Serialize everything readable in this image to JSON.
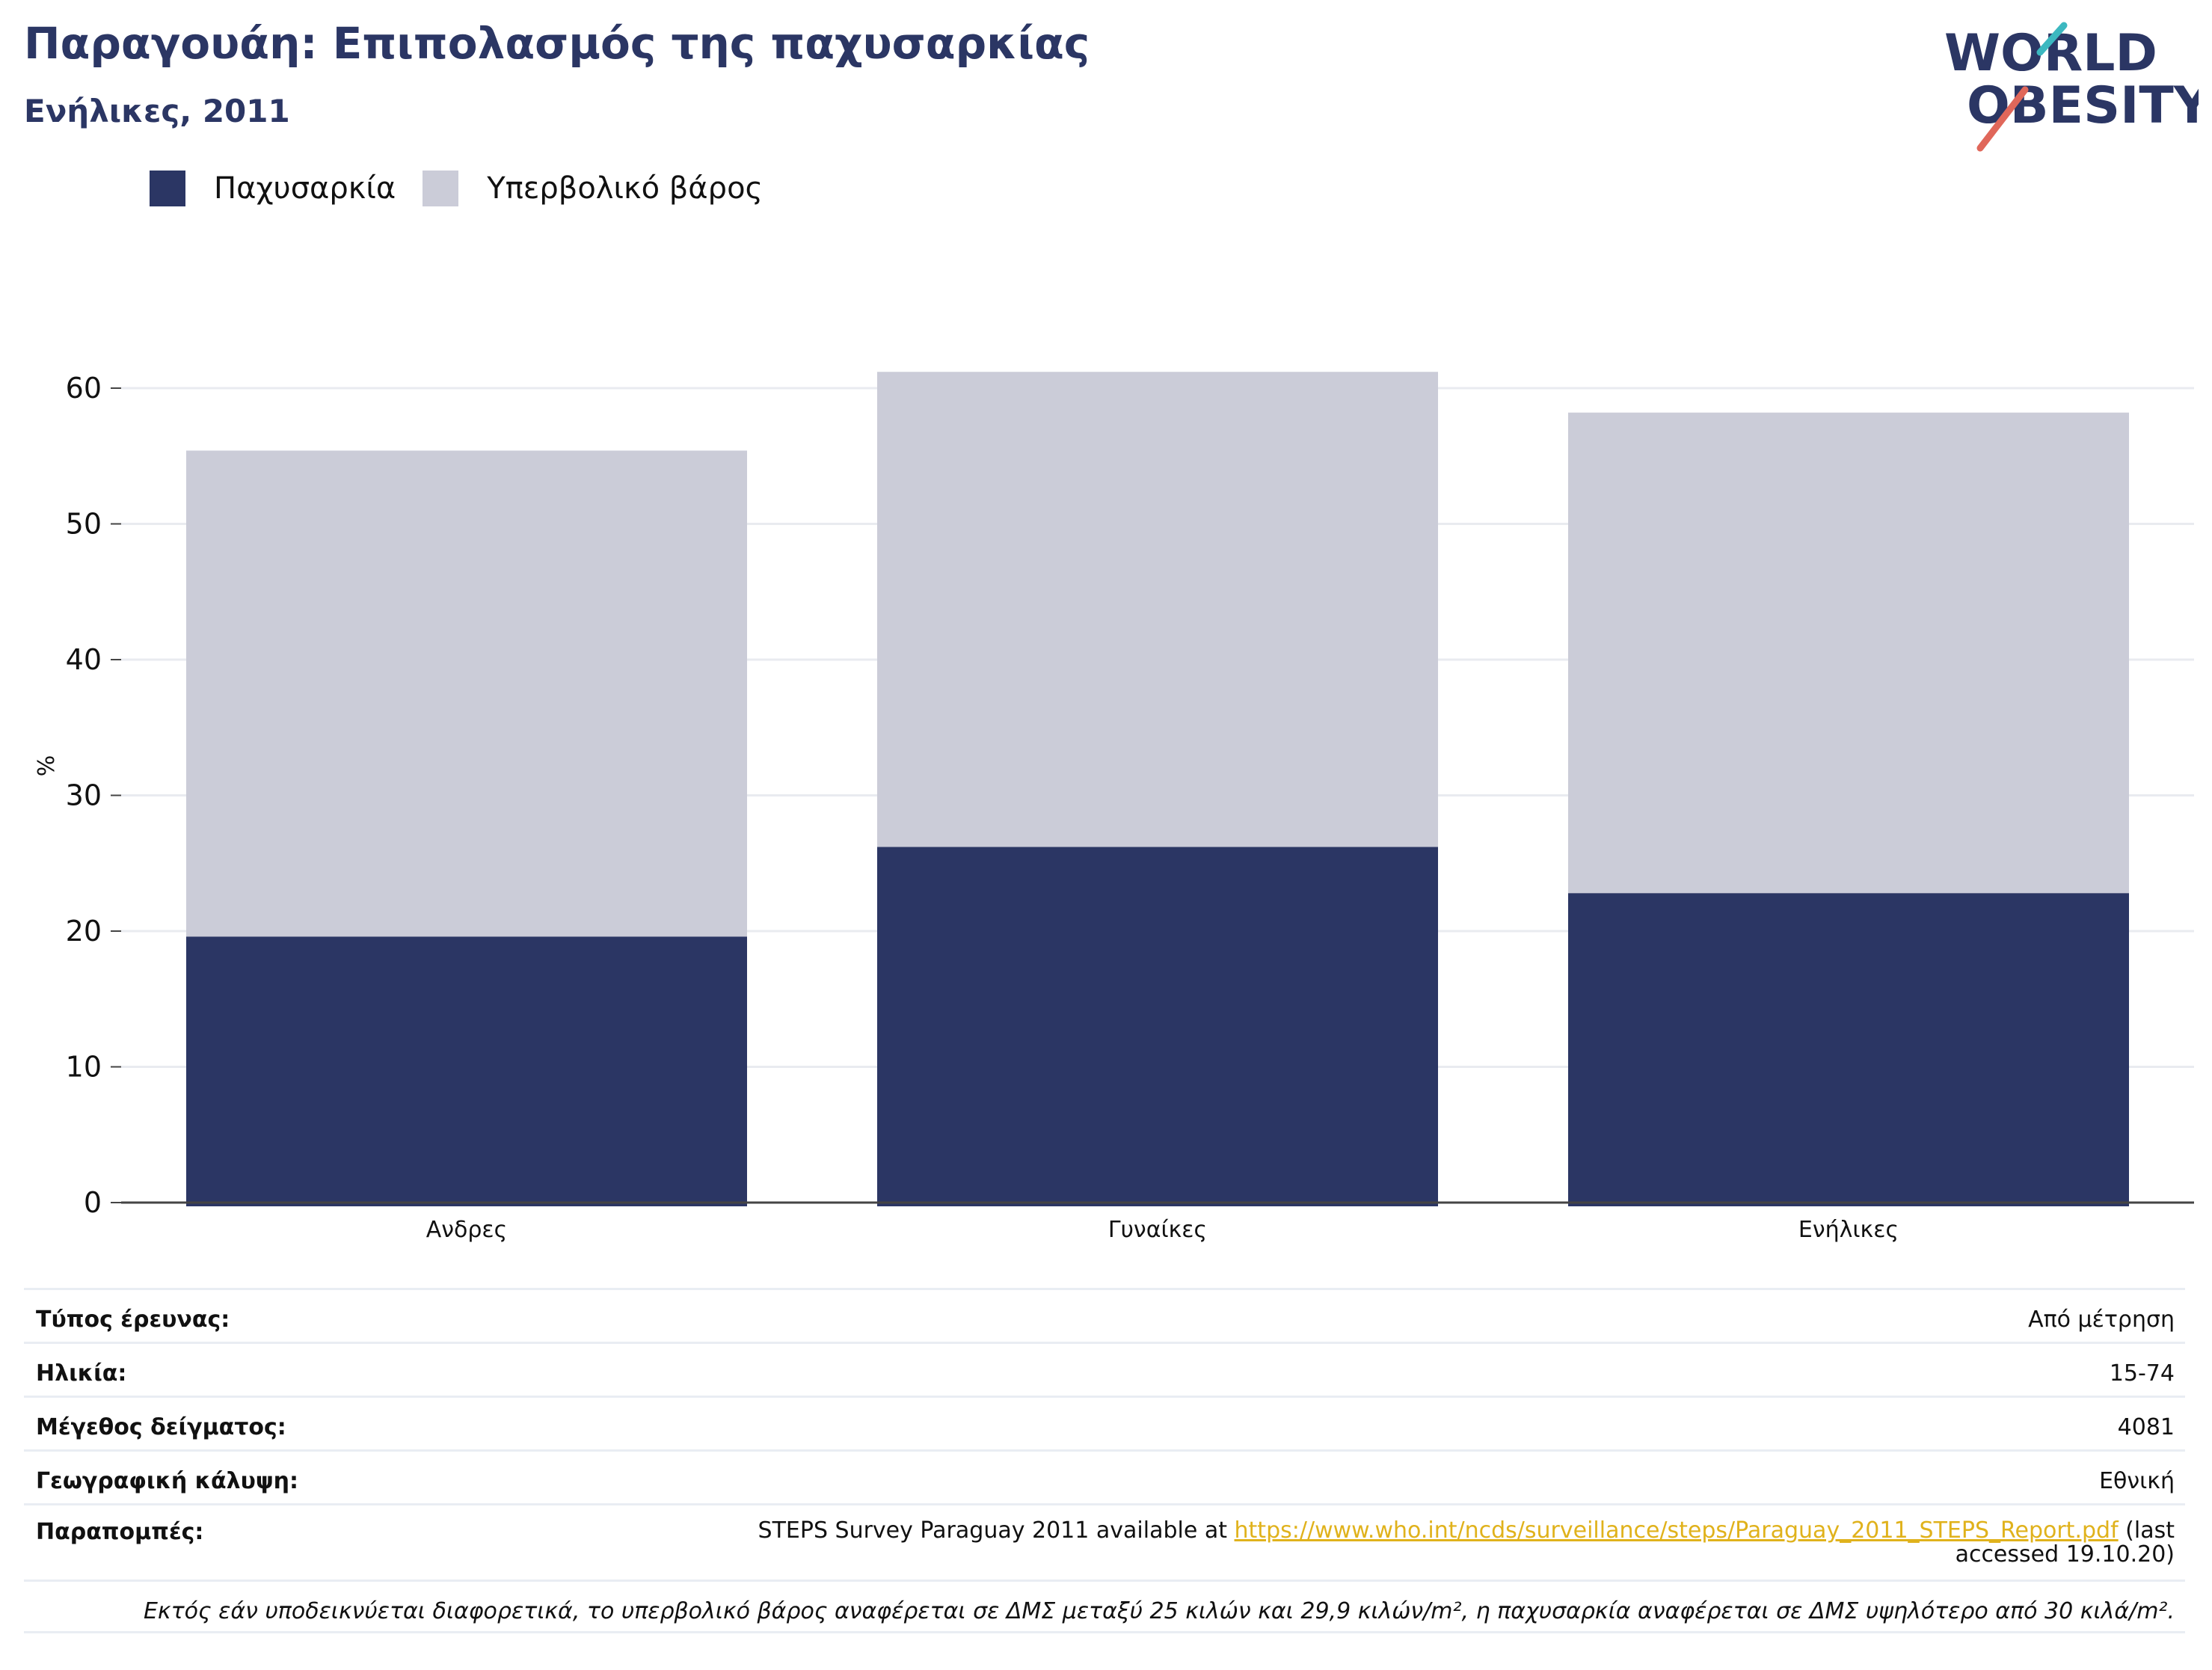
{
  "header": {
    "title": "Παραγουάη: Επιπολασμός της παχυσαρκίας",
    "subtitle": "Ενήλικες, 2011",
    "logo_text_line1": "WORLD",
    "logo_text_line2": "OBESITY"
  },
  "colors": {
    "obesity": "#2b3664",
    "overweight": "#cbccd8",
    "logo_teal": "#3cb8c0",
    "logo_coral": "#e0675a",
    "link": "#e0b21c"
  },
  "chart_data": {
    "type": "bar",
    "stacked": true,
    "categories": [
      "Ανδρες",
      "Γυναίκες",
      "Ενήλικες"
    ],
    "series": [
      {
        "name": "Παχυσαρκία",
        "values": [
          19.6,
          26.2,
          22.8
        ]
      },
      {
        "name": "Υπερβολικό βάρος",
        "values": [
          35.8,
          35.0,
          35.4
        ]
      }
    ],
    "ylabel": "%",
    "ylim": [
      0,
      65
    ],
    "yticks": [
      0,
      10,
      20,
      30,
      40,
      50,
      60
    ],
    "grid": true,
    "legend": "top-left"
  },
  "info": {
    "survey_type_label": "Τύπος έρευνας:",
    "survey_type_value": "Από μέτρηση",
    "age_label": "Ηλικία:",
    "age_value": "15-74",
    "sample_label": "Μέγεθος δείγματος:",
    "sample_value": "4081",
    "coverage_label": "Γεωγραφική κάλυψη:",
    "coverage_value": "Εθνική",
    "refs_label": "Παραπομπές:",
    "refs_prefix": "STEPS Survey Paraguay 2011 available at ",
    "refs_link": "https://www.who.int/ncds/surveillance/steps/Paraguay_2011_STEPS_Report.pdf",
    "refs_suffix": " (last accessed 19.10.20)",
    "footnote": "Εκτός εάν υποδεικνύεται διαφορετικά, το υπερβολικό βάρος αναφέρεται σε ΔΜΣ μεταξύ 25 κιλών και 29,9 κιλών/m², η παχυσαρκία αναφέρεται σε ΔΜΣ υψηλότερο από 30 κιλά/m²."
  }
}
